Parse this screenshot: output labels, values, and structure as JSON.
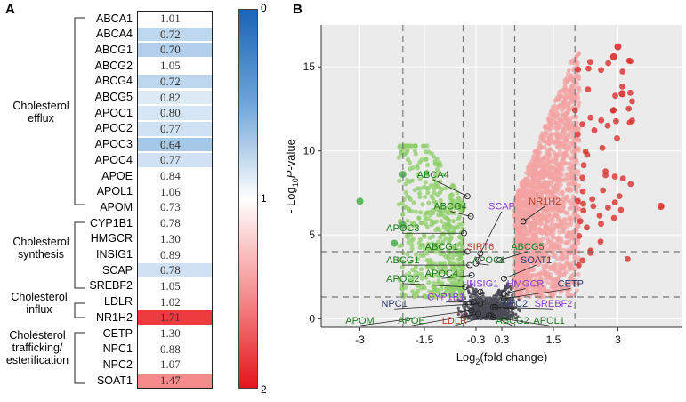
{
  "panel_a": {
    "label": "A",
    "rows": [
      {
        "gene": "ABCA1",
        "value": "1.01",
        "color": "#ffffff"
      },
      {
        "gene": "ABCA4",
        "value": "0.72",
        "color": "#bdd7ee"
      },
      {
        "gene": "ABCG1",
        "value": "0.70",
        "color": "#b2d0eb"
      },
      {
        "gene": "ABCG2",
        "value": "1.05",
        "color": "#ffffff"
      },
      {
        "gene": "ABCG4",
        "value": "0.72",
        "color": "#bdd7ee"
      },
      {
        "gene": "ABCG5",
        "value": "0.82",
        "color": "#dceaf6"
      },
      {
        "gene": "APOC1",
        "value": "0.80",
        "color": "#d6e6f4"
      },
      {
        "gene": "APOC2",
        "value": "0.77",
        "color": "#cfe1f2"
      },
      {
        "gene": "APOC3",
        "value": "0.64",
        "color": "#a6c8e7"
      },
      {
        "gene": "APOC4",
        "value": "0.77",
        "color": "#cfe1f2"
      },
      {
        "gene": "APOE",
        "value": "0.84",
        "color": "#ffffff"
      },
      {
        "gene": "APOL1",
        "value": "1.06",
        "color": "#ffffff"
      },
      {
        "gene": "APOM",
        "value": "0.73",
        "color": "#ffffff"
      },
      {
        "gene": "CYP1B1",
        "value": "0.78",
        "color": "#ffffff"
      },
      {
        "gene": "HMGCR",
        "value": "1.30",
        "color": "#ffffff"
      },
      {
        "gene": "INSIG1",
        "value": "0.89",
        "color": "#ffffff"
      },
      {
        "gene": "SCAP",
        "value": "0.78",
        "color": "#cfe1f2"
      },
      {
        "gene": "SREBF2",
        "value": "1.05",
        "color": "#ffffff"
      },
      {
        "gene": "LDLR",
        "value": "1.02",
        "color": "#ffffff"
      },
      {
        "gene": "NR1H2",
        "value": "1.71",
        "color": "#ee3b3f"
      },
      {
        "gene": "CETP",
        "value": "1.30",
        "color": "#ffffff"
      },
      {
        "gene": "NPC1",
        "value": "0.88",
        "color": "#ffffff"
      },
      {
        "gene": "NPC2",
        "value": "1.07",
        "color": "#ffffff"
      },
      {
        "gene": "SOAT1",
        "value": "1.47",
        "color": "#f48a8a"
      }
    ],
    "groups": [
      {
        "line1": "Cholesterol",
        "line2": "efflux",
        "line3": ""
      },
      {
        "line1": "Cholesterol",
        "line2": "synthesis",
        "line3": ""
      },
      {
        "line1": "Cholesterol",
        "line2": "influx",
        "line3": ""
      },
      {
        "line1": "Cholesterol",
        "line2": "trafficking/",
        "line3": "esterification"
      }
    ],
    "colorbar": {
      "top": "0",
      "middle": "1",
      "bottom": "2",
      "colors": {
        "low": "#1a64b8",
        "mid": "#ffffff",
        "high": "#e4141c"
      }
    }
  },
  "panel_b": {
    "label": "B",
    "chart_data": {
      "type": "scatter",
      "title": "",
      "xlabel_base": "Log",
      "xlabel_sub": "2",
      "xlabel_rest": "(fold change)",
      "ylabel_a": "- Log",
      "ylabel_sub": "10",
      "ylabel_b": "P",
      "ylabel_c": "-value",
      "xlim": [
        -3.9,
        4.5
      ],
      "ylim": [
        -0.5,
        17.5
      ],
      "xticks": [
        {
          "v": -3,
          "t": "-3"
        },
        {
          "v": -1.5,
          "t": "-1.5"
        },
        {
          "v": -0.3,
          "t": "-0.3"
        },
        {
          "v": 0.3,
          "t": "0.3"
        },
        {
          "v": 1.5,
          "t": "1.5"
        },
        {
          "v": 3,
          "t": "3"
        }
      ],
      "yticks": [
        {
          "v": 0,
          "t": "0"
        },
        {
          "v": 5,
          "t": "5"
        },
        {
          "v": 10,
          "t": "10"
        },
        {
          "v": 15,
          "t": "15"
        }
      ],
      "vlines": [
        -2,
        -0.6,
        0.6,
        2
      ],
      "hlines": [
        1.3,
        4.0
      ],
      "colors": {
        "down": "#8fcf6a",
        "down_strong": "#4caf50",
        "up": "#f4a3a3",
        "up_strong": "#d9302c",
        "ns": "#4a4a55",
        "label_green": "#1e7a1e",
        "label_red": "#b5402a",
        "label_purple": "#8a3fc9",
        "label_navy": "#2d3a6e"
      },
      "labels": [
        {
          "gene": "ABCA4",
          "x": -0.5,
          "y": 7.3,
          "lx": -1.3,
          "ly": 8.3,
          "c": "green"
        },
        {
          "gene": "ABCG4",
          "x": -0.42,
          "y": 6.1,
          "lx": -0.9,
          "ly": 6.4,
          "c": "green"
        },
        {
          "gene": "APOC3",
          "x": -0.58,
          "y": 5.1,
          "lx": -2.0,
          "ly": 5.1,
          "c": "green"
        },
        {
          "gene": "SCAP",
          "x": -0.2,
          "y": 3.9,
          "lx": 0.3,
          "ly": 6.4,
          "c": "purple"
        },
        {
          "gene": "NR1H2",
          "x": 0.8,
          "y": 5.8,
          "lx": 1.3,
          "ly": 6.7,
          "c": "red"
        },
        {
          "gene": "ABCG1",
          "x": -0.5,
          "y": 4.0,
          "lx": -1.1,
          "ly": 4.0,
          "c": "green"
        },
        {
          "gene": "SIRT6",
          "x": -0.25,
          "y": 3.5,
          "lx": -0.2,
          "ly": 4.0,
          "c": "red"
        },
        {
          "gene": "ABCG5",
          "x": 0.25,
          "y": 3.5,
          "lx": 0.9,
          "ly": 4.0,
          "c": "green"
        },
        {
          "gene": "ABCG1",
          "x": -0.45,
          "y": 3.2,
          "lx": -2.0,
          "ly": 3.2,
          "c": "green"
        },
        {
          "gene": "APOC1",
          "x": -0.3,
          "y": 3.3,
          "lx": 0.0,
          "ly": 3.2,
          "c": "green"
        },
        {
          "gene": "SOAT1",
          "x": 0.35,
          "y": 2.4,
          "lx": 1.1,
          "ly": 3.2,
          "c": "navy"
        },
        {
          "gene": "APOC4",
          "x": -0.4,
          "y": 2.6,
          "lx": -1.1,
          "ly": 2.4,
          "c": "green"
        },
        {
          "gene": "APOC2",
          "x": -0.55,
          "y": 1.9,
          "lx": -2.0,
          "ly": 2.1,
          "c": "green"
        },
        {
          "gene": "INSIG1",
          "x": -0.2,
          "y": 1.6,
          "lx": -0.15,
          "ly": 1.8,
          "c": "purple"
        },
        {
          "gene": "HMGCR",
          "x": 0.35,
          "y": 1.5,
          "lx": 0.85,
          "ly": 1.8,
          "c": "purple"
        },
        {
          "gene": "CETP",
          "x": 0.35,
          "y": 1.2,
          "lx": 1.9,
          "ly": 1.8,
          "c": "navy"
        },
        {
          "gene": "CYP1B1",
          "x": -0.35,
          "y": 1.0,
          "lx": -1.0,
          "ly": 1.0,
          "c": "purple"
        },
        {
          "gene": "NPC1",
          "x": -0.2,
          "y": 0.9,
          "lx": -2.2,
          "ly": 0.6,
          "c": "navy"
        },
        {
          "gene": "NPC2",
          "x": 0.1,
          "y": 0.7,
          "lx": 0.6,
          "ly": 0.6,
          "c": "navy"
        },
        {
          "gene": "SREBF2",
          "x": 0.15,
          "y": 0.7,
          "lx": 1.5,
          "ly": 0.6,
          "c": "purple"
        },
        {
          "gene": "APOM",
          "x": -0.4,
          "y": 0.5,
          "lx": -3.0,
          "ly": -0.4,
          "c": "green"
        },
        {
          "gene": "APOE",
          "x": -0.25,
          "y": 0.3,
          "lx": -1.8,
          "ly": -0.4,
          "c": "green"
        },
        {
          "gene": "LDLR",
          "x": 0.0,
          "y": 0.2,
          "lx": -0.8,
          "ly": -0.4,
          "c": "red"
        },
        {
          "gene": "ABCG2",
          "x": 0.05,
          "y": 0.2,
          "lx": 0.55,
          "ly": -0.4,
          "c": "green"
        },
        {
          "gene": "APOL1",
          "x": 0.1,
          "y": 0.1,
          "lx": 1.4,
          "ly": -0.4,
          "c": "green"
        }
      ]
    }
  }
}
